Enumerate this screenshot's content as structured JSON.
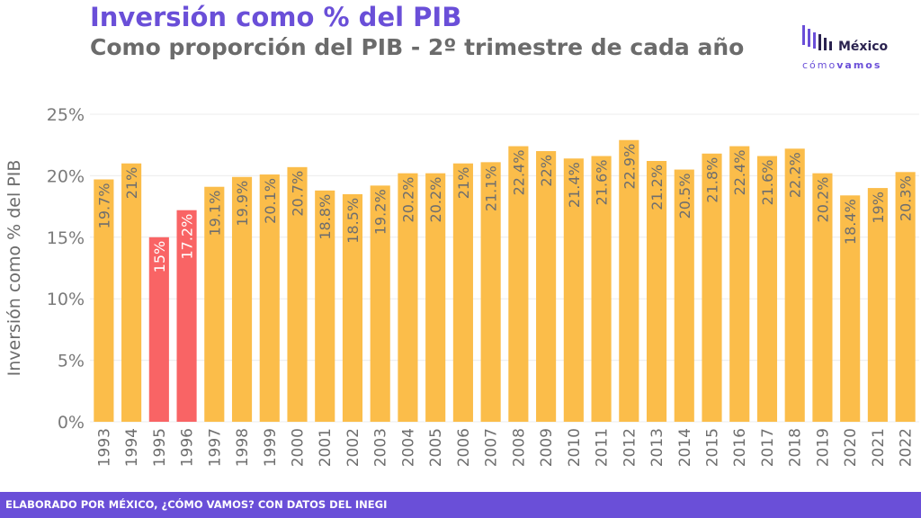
{
  "title": "Inversión como % del PIB",
  "subtitle": "Como proporción del PIB - 2º trimestre de cada año",
  "logo": {
    "word": "México",
    "tag_light": "cómo",
    "tag_bold": "vamos"
  },
  "footer": "ELABORADO POR MÉXICO, ¿CÓMO VAMOS? CON DATOS DEL INEGI",
  "colors": {
    "normal": "#fbbd4a",
    "highlight": "#f96465",
    "accent": "#6a4fd8"
  },
  "chart_data": {
    "type": "bar",
    "ylabel": "Inversión como % del PIB",
    "ylim": [
      0,
      25
    ],
    "yticks": [
      "0%",
      "5%",
      "10%",
      "15%",
      "20%",
      "25%"
    ],
    "grid": true,
    "categories": [
      "1993",
      "1994",
      "1995",
      "1996",
      "1997",
      "1998",
      "1999",
      "2000",
      "2001",
      "2002",
      "2003",
      "2004",
      "2005",
      "2006",
      "2007",
      "2008",
      "2009",
      "2010",
      "2011",
      "2012",
      "2013",
      "2014",
      "2015",
      "2016",
      "2017",
      "2018",
      "2019",
      "2020",
      "2021",
      "2022"
    ],
    "values": [
      19.7,
      21,
      15,
      17.2,
      19.1,
      19.9,
      20.1,
      20.7,
      18.8,
      18.5,
      19.2,
      20.2,
      20.2,
      21,
      21.1,
      22.4,
      22,
      21.4,
      21.6,
      22.9,
      21.2,
      20.5,
      21.8,
      22.4,
      21.6,
      22.2,
      20.2,
      18.4,
      19,
      20.3
    ],
    "labels": [
      "19.7%",
      "21%",
      "15%",
      "17.2%",
      "19.1%",
      "19.9%",
      "20.1%",
      "20.7%",
      "18.8%",
      "18.5%",
      "19.2%",
      "20.2%",
      "20.2%",
      "21%",
      "21.1%",
      "22.4%",
      "22%",
      "21.4%",
      "21.6%",
      "22.9%",
      "21.2%",
      "20.5%",
      "21.8%",
      "22.4%",
      "21.6%",
      "22.2%",
      "20.2%",
      "18.4%",
      "19%",
      "20.3%"
    ],
    "highlighted": [
      "1995",
      "1996"
    ]
  }
}
